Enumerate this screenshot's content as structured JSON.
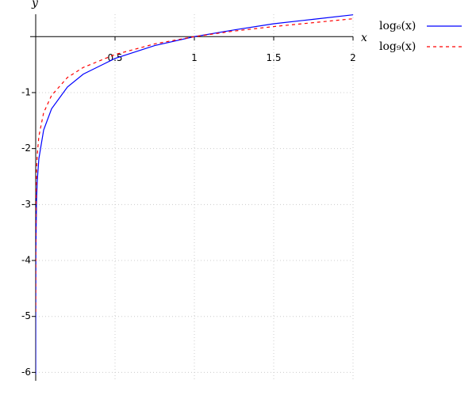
{
  "chart_data": {
    "type": "line",
    "x_label": "x",
    "y_label": "y",
    "x": [
      2e-05,
      0.0001,
      0.001,
      0.005,
      0.01,
      0.02,
      0.05,
      0.1,
      0.2,
      0.3,
      0.5,
      0.75,
      1,
      1.25,
      1.5,
      1.75,
      2
    ],
    "series": [
      {
        "name": "log₆(x)",
        "color": "#0000ff",
        "style": "solid",
        "values": [
          -6.04,
          -5.14,
          -3.86,
          -2.96,
          -2.57,
          -2.18,
          -1.67,
          -1.29,
          -0.9,
          -0.67,
          -0.39,
          -0.16,
          0,
          0.12,
          0.23,
          0.31,
          0.39
        ]
      },
      {
        "name": "log₉(x)",
        "color": "#ff0000",
        "style": "dashed",
        "values": [
          -4.92,
          -4.19,
          -3.14,
          -2.41,
          -2.1,
          -1.78,
          -1.36,
          -1.05,
          -0.73,
          -0.55,
          -0.32,
          -0.13,
          0,
          0.1,
          0.18,
          0.25,
          0.32
        ]
      }
    ],
    "xlim": [
      0,
      2
    ],
    "ylim": [
      -6.15,
      0.4
    ],
    "xticks": [
      0.5,
      1,
      1.5,
      2
    ],
    "yticks": [
      -1,
      -2,
      -3,
      -4,
      -5,
      -6
    ],
    "grid": true
  }
}
